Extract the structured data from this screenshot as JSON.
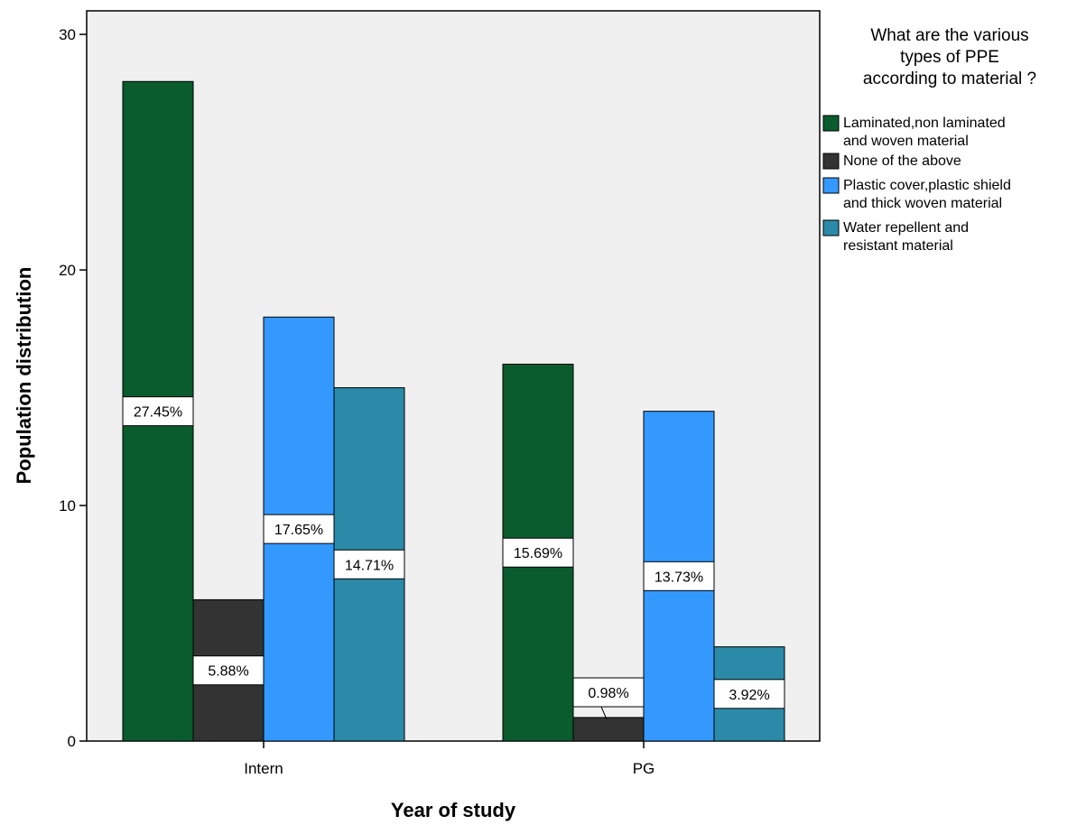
{
  "chart_data": {
    "type": "bar",
    "xlabel": "Year of study",
    "ylabel": "Population distribution",
    "ylim": [
      0,
      31
    ],
    "yticks": [
      0,
      10,
      20,
      30
    ],
    "categories": [
      "Intern",
      "PG"
    ],
    "legend": {
      "title_lines": [
        "What are the various",
        "types of PPE",
        "according to material ?"
      ],
      "placement": "right"
    },
    "series": [
      {
        "name": "Laminated,non laminated and woven material",
        "name_lines": [
          "Laminated,non laminated",
          "and woven material"
        ],
        "color": "#0a5c2e",
        "values": [
          28,
          16
        ],
        "labels": [
          "27.45%",
          "15.69%"
        ]
      },
      {
        "name": "None of the above",
        "name_lines": [
          "None of the above"
        ],
        "color": "#333333",
        "values": [
          6,
          1
        ],
        "labels": [
          "5.88%",
          "0.98%"
        ]
      },
      {
        "name": "Plastic cover,plastic shield and thick woven material",
        "name_lines": [
          "Plastic cover,plastic shield",
          "and thick woven material"
        ],
        "color": "#3399ff",
        "values": [
          18,
          14
        ],
        "labels": [
          "17.65%",
          "13.73%"
        ]
      },
      {
        "name": "Water repellent and resistant material",
        "name_lines": [
          "Water repellent and",
          "resistant material"
        ],
        "color": "#2a8aa8",
        "values": [
          15,
          4
        ],
        "labels": [
          "14.71%",
          "3.92%"
        ]
      }
    ],
    "plot_background": "#f0f0f0",
    "grid": false
  }
}
